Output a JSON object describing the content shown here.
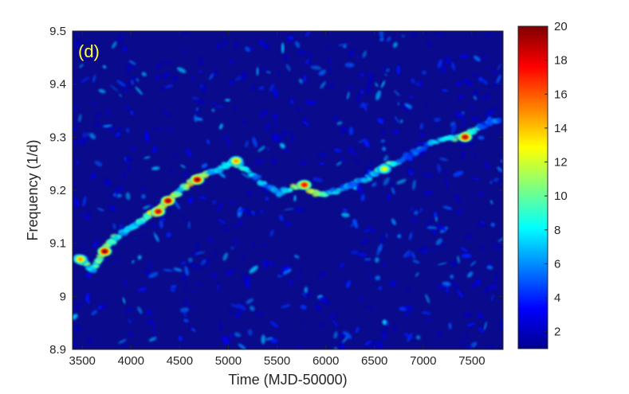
{
  "chart_data": {
    "type": "heatmap",
    "panel_label": "(d)",
    "xlabel": "Time (MJD-50000)",
    "ylabel": "Frequency (1/d)",
    "xlim": [
      3400,
      7820
    ],
    "ylim": [
      8.9,
      9.5
    ],
    "x_ticks": [
      "3500",
      "4000",
      "4500",
      "5000",
      "5500",
      "6000",
      "6500",
      "7000",
      "7500"
    ],
    "y_ticks": [
      "8.9",
      "9",
      "9.1",
      "9.2",
      "9.3",
      "9.4",
      "9.5"
    ],
    "colorbar": {
      "range": [
        1,
        20
      ],
      "ticks": [
        "2",
        "4",
        "6",
        "8",
        "10",
        "12",
        "14",
        "16",
        "18",
        "20"
      ],
      "colormap": "jet"
    },
    "background_color": "#0a0a8c",
    "ridge": {
      "name": "frequency track",
      "points": [
        {
          "x": 3450,
          "y": 9.07,
          "v": 14
        },
        {
          "x": 3620,
          "y": 9.05,
          "v": 10
        },
        {
          "x": 3720,
          "y": 9.085,
          "v": 19
        },
        {
          "x": 3830,
          "y": 9.11,
          "v": 11
        },
        {
          "x": 4000,
          "y": 9.13,
          "v": 9
        },
        {
          "x": 4150,
          "y": 9.15,
          "v": 12
        },
        {
          "x": 4270,
          "y": 9.16,
          "v": 18
        },
        {
          "x": 4370,
          "y": 9.18,
          "v": 20
        },
        {
          "x": 4520,
          "y": 9.2,
          "v": 10
        },
        {
          "x": 4680,
          "y": 9.225,
          "v": 20
        },
        {
          "x": 4850,
          "y": 9.235,
          "v": 9
        },
        {
          "x": 5060,
          "y": 9.255,
          "v": 14
        },
        {
          "x": 5270,
          "y": 9.225,
          "v": 8
        },
        {
          "x": 5520,
          "y": 9.195,
          "v": 9
        },
        {
          "x": 5760,
          "y": 9.21,
          "v": 18
        },
        {
          "x": 5950,
          "y": 9.19,
          "v": 12
        },
        {
          "x": 6200,
          "y": 9.205,
          "v": 8
        },
        {
          "x": 6450,
          "y": 9.225,
          "v": 9
        },
        {
          "x": 6620,
          "y": 9.245,
          "v": 12
        },
        {
          "x": 6850,
          "y": 9.265,
          "v": 7
        },
        {
          "x": 7100,
          "y": 9.29,
          "v": 8
        },
        {
          "x": 7420,
          "y": 9.3,
          "v": 18
        },
        {
          "x": 7600,
          "y": 9.32,
          "v": 7
        },
        {
          "x": 7800,
          "y": 9.335,
          "v": 8
        }
      ]
    },
    "peaks": [
      {
        "x": 3480,
        "y": 9.07,
        "v": 15
      },
      {
        "x": 3730,
        "y": 9.085,
        "v": 20
      },
      {
        "x": 4280,
        "y": 9.16,
        "v": 19
      },
      {
        "x": 4380,
        "y": 9.18,
        "v": 20
      },
      {
        "x": 4680,
        "y": 9.22,
        "v": 20
      },
      {
        "x": 5080,
        "y": 9.255,
        "v": 15
      },
      {
        "x": 5780,
        "y": 9.21,
        "v": 18
      },
      {
        "x": 6600,
        "y": 9.24,
        "v": 13
      },
      {
        "x": 7430,
        "y": 9.3,
        "v": 19
      }
    ]
  }
}
